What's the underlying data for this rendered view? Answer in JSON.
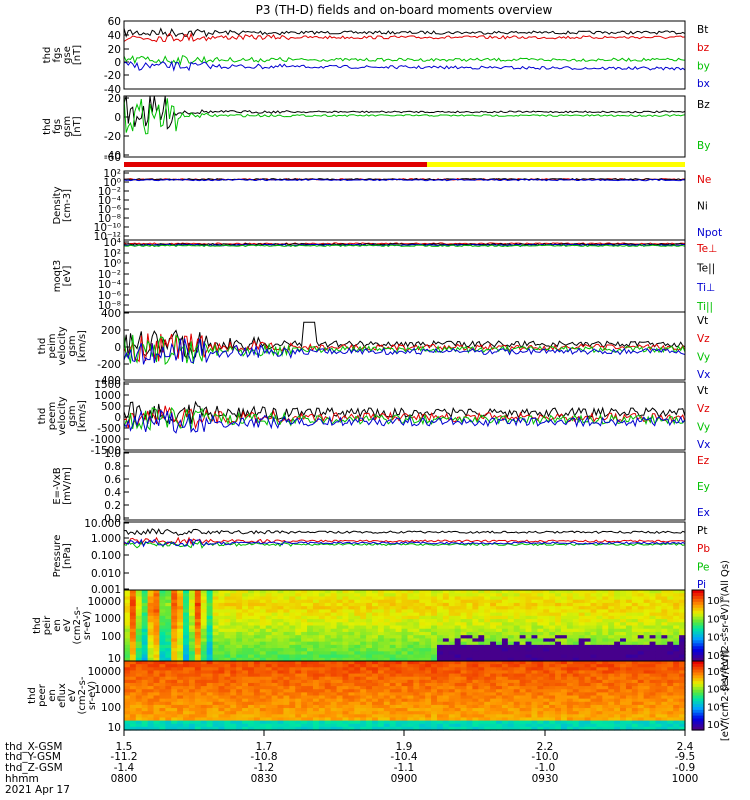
{
  "title": "P3 (TH-D) fields and on-board moments overview",
  "chart_data": [
    {
      "type": "line",
      "panel": "fgs-gse",
      "ylabel_lines": [
        "thd",
        "fgs",
        "gse",
        "[nT]"
      ],
      "ylim": [
        -40,
        60
      ],
      "ticks": [
        "60",
        "40",
        "20",
        "0",
        "-20",
        "-40"
      ],
      "series": [
        {
          "name": "Bt",
          "color": "#000000"
        },
        {
          "name": "bz",
          "color": "#e00000"
        },
        {
          "name": "by",
          "color": "#00c000"
        },
        {
          "name": "bx",
          "color": "#0000d0"
        }
      ]
    },
    {
      "type": "line",
      "panel": "fgs-gsm",
      "ylabel_lines": [
        "thd",
        "fgs",
        "gsm",
        "[nT]"
      ],
      "ylim": [
        -70,
        30
      ],
      "ticks": [
        "20",
        "0",
        "-20",
        "-40",
        "-60"
      ],
      "series": [
        {
          "name": "Bz",
          "color": "#000000"
        },
        {
          "name": "By",
          "color": "#00c000"
        }
      ]
    },
    {
      "type": "line",
      "panel": "density",
      "ylabel_lines": [
        "Density",
        "[cm-3]"
      ],
      "ylim_log": [
        1e-12,
        100
      ],
      "ticks": [
        "10²",
        "10⁰",
        "10⁻²",
        "10⁻⁴",
        "10⁻⁶",
        "10⁻⁸",
        "10⁻¹⁰",
        "10⁻¹²"
      ],
      "series": [
        {
          "name": "Ne",
          "color": "#e00000"
        },
        {
          "name": "Ni",
          "color": "#000000"
        },
        {
          "name": "Npot",
          "color": "#0000d0"
        }
      ]
    },
    {
      "type": "line",
      "panel": "temperature",
      "ylabel_lines": [
        "moqt3",
        "[eV]"
      ],
      "ylim_log": [
        1e-08,
        10000
      ],
      "ticks": [
        "10⁴",
        "10²",
        "10⁰",
        "10⁻²",
        "10⁻⁴",
        "10⁻⁶",
        "10⁻⁸"
      ],
      "series": [
        {
          "name": "Te⊥",
          "color": "#e00000"
        },
        {
          "name": "Te||",
          "color": "#000000"
        },
        {
          "name": "Ti⊥",
          "color": "#0000d0"
        },
        {
          "name": "Ti||",
          "color": "#00c000"
        }
      ]
    },
    {
      "type": "line",
      "panel": "peim-velocity",
      "ylabel_lines": [
        "thd",
        "peim",
        "velocity",
        "gsm",
        "[km/s]"
      ],
      "ylim": [
        -400,
        400
      ],
      "ticks": [
        "400",
        "200",
        "0",
        "-200",
        "-400"
      ],
      "series": [
        {
          "name": "Vt",
          "color": "#000000"
        },
        {
          "name": "Vz",
          "color": "#e00000"
        },
        {
          "name": "Vy",
          "color": "#00c000"
        },
        {
          "name": "Vx",
          "color": "#0000d0"
        }
      ]
    },
    {
      "type": "line",
      "panel": "peem-velocity",
      "ylabel_lines": [
        "thd",
        "peem",
        "velocity",
        "gsm",
        "[km/s]"
      ],
      "ylim": [
        -1500,
        1500
      ],
      "ticks": [
        "1500",
        "1000",
        "500",
        "0",
        "-500",
        "-1000",
        "-1500"
      ],
      "series": [
        {
          "name": "Vt",
          "color": "#000000"
        },
        {
          "name": "Vz",
          "color": "#e00000"
        },
        {
          "name": "Vy",
          "color": "#00c000"
        },
        {
          "name": "Vx",
          "color": "#0000d0"
        }
      ]
    },
    {
      "type": "line",
      "panel": "efield",
      "ylabel_lines": [
        "E=-VxB",
        "[mV/m]"
      ],
      "ylim": [
        0,
        1
      ],
      "ticks": [
        "1.0",
        "0.8",
        "0.6",
        "0.4",
        "0.2",
        "0.0"
      ],
      "series": [
        {
          "name": "Ez",
          "color": "#e00000"
        },
        {
          "name": "Ey",
          "color": "#00c000"
        },
        {
          "name": "Ex",
          "color": "#0000d0"
        }
      ]
    },
    {
      "type": "line",
      "panel": "pressure",
      "ylabel_lines": [
        "Pressure",
        "[nPa]"
      ],
      "ylim_log": [
        0.001,
        10
      ],
      "ticks": [
        "10.000",
        "1.000",
        "0.100",
        "0.010",
        "0.001"
      ],
      "series": [
        {
          "name": "Pt",
          "color": "#000000"
        },
        {
          "name": "Pb",
          "color": "#e00000"
        },
        {
          "name": "Pe",
          "color": "#00c000"
        },
        {
          "name": "Pi",
          "color": "#0000d0"
        }
      ]
    },
    {
      "type": "heatmap",
      "panel": "peir-spectrogram",
      "ylabel_lines": [
        "thd",
        "peir",
        "en",
        "eV",
        "(cm2-s-",
        "sr-eV)"
      ],
      "ylim_log": [
        5,
        30000
      ],
      "ticks": [
        "10000",
        "1000",
        "100",
        "10"
      ],
      "colorbar_label": "[eV/(cm2-s-sr-eV)] (All Qs)"
    },
    {
      "type": "heatmap",
      "panel": "peer-spectrogram",
      "ylabel_lines": [
        "thd",
        "peer",
        "en",
        "eflux",
        "eV",
        "(cm2-s-",
        "sr-eV)"
      ],
      "ylim_log": [
        5,
        30000
      ],
      "ticks": [
        "10000",
        "1000",
        "100",
        "10"
      ],
      "colorbar_label": "[eV/(cm2-s-sr-eV)]"
    }
  ],
  "colorbar_ticks": [
    "10⁸",
    "10⁶",
    "10⁴",
    "10²"
  ],
  "x_axis": {
    "rows": [
      {
        "label": "thd_X-GSM",
        "values": [
          "1.5",
          "1.7",
          "1.9",
          "2.2",
          "2.4"
        ]
      },
      {
        "label": "thd_Y-GSM",
        "values": [
          "-11.2",
          "-10.8",
          "-10.4",
          "-10.0",
          "-9.5"
        ]
      },
      {
        "label": "thd_Z-GSM",
        "values": [
          "-1.4",
          "-1.2",
          "-1.1",
          "-1.0",
          "-0.9"
        ]
      },
      {
        "label": "hhmm",
        "values": [
          "0800",
          "0830",
          "0900",
          "0930",
          "1000"
        ]
      }
    ],
    "date": "2021 Apr 17"
  },
  "colors": {
    "red": "#e00000",
    "green": "#00c000",
    "blue": "#0000d0",
    "yellow": "#ffff00"
  }
}
